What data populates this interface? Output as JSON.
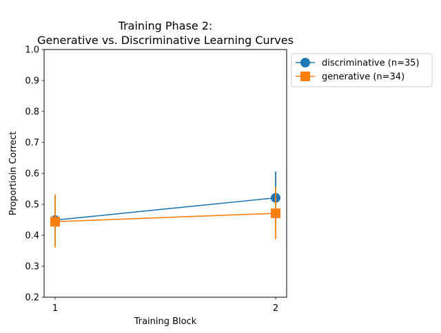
{
  "chart_data": {
    "type": "line",
    "title_line1": "Training Phase 2:",
    "title_line2": "Generative vs. Discriminative Learning Curves",
    "xlabel": "Training Block",
    "ylabel": "Proportioin Correct",
    "x": [
      1,
      2
    ],
    "x_tick_labels": [
      "1",
      "2"
    ],
    "xlim": [
      0.95,
      2.05
    ],
    "ylim": [
      0.2,
      1.0
    ],
    "y_ticks": [
      0.2,
      0.3,
      0.4,
      0.5,
      0.6,
      0.7,
      0.8,
      0.9,
      1.0
    ],
    "y_tick_labels": [
      "0.2",
      "0.3",
      "0.4",
      "0.5",
      "0.6",
      "0.7",
      "0.8",
      "0.9",
      "1.0"
    ],
    "grid": false,
    "legend_position": "outside upper right",
    "series": [
      {
        "name": "discriminative (n=35)",
        "marker": "circle",
        "color": "#1f77b4",
        "values": [
          0.449,
          0.521
        ],
        "err_low": [
          0.37,
          0.437
        ],
        "err_high": [
          0.529,
          0.606
        ]
      },
      {
        "name": "generative (n=34)",
        "marker": "square",
        "color": "#ff7f0e",
        "values": [
          0.444,
          0.471
        ],
        "err_low": [
          0.361,
          0.388
        ],
        "err_high": [
          0.532,
          0.556
        ]
      }
    ]
  }
}
